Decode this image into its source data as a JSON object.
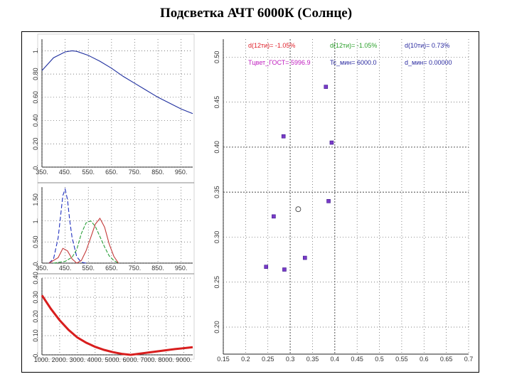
{
  "title": "Подсветка АЧТ 6000К  (Солнце)",
  "chart_data": [
    {
      "type": "line",
      "name": "spectrum",
      "x_ticks": [
        "350.",
        "450.",
        "550.",
        "650.",
        "750.",
        "850.",
        "950."
      ],
      "y_ticks": [
        "0.",
        "0.20",
        "0.40",
        "0.60",
        "0.80",
        "1."
      ],
      "xlim": [
        350,
        1000
      ],
      "ylim": [
        0,
        1.1
      ],
      "series": [
        {
          "name": "blackbody",
          "color": "#1f2f9f",
          "x": [
            350,
            400,
            450,
            480,
            500,
            550,
            600,
            650,
            700,
            750,
            800,
            850,
            900,
            950,
            1000
          ],
          "y": [
            0.83,
            0.94,
            0.99,
            1.0,
            0.995,
            0.96,
            0.91,
            0.85,
            0.78,
            0.72,
            0.66,
            0.6,
            0.55,
            0.5,
            0.46
          ]
        }
      ]
    },
    {
      "type": "line",
      "name": "color-matching",
      "x_ticks": [
        "350.",
        "450.",
        "550.",
        "650.",
        "750.",
        "850.",
        "950."
      ],
      "y_ticks": [
        "0.",
        "0.50",
        "1.",
        "1.50"
      ],
      "xlim": [
        350,
        1000
      ],
      "ylim": [
        0,
        1.8
      ],
      "series": [
        {
          "name": "z",
          "color": "#1f2fbf",
          "dash": "6,3",
          "x": [
            380,
            400,
            420,
            440,
            450,
            460,
            470,
            480,
            500,
            520,
            540
          ],
          "y": [
            0.0,
            0.1,
            0.6,
            1.6,
            1.75,
            1.5,
            1.0,
            0.6,
            0.15,
            0.02,
            0.0
          ]
        },
        {
          "name": "y",
          "color": "#2a9f3a",
          "dash": "5,2",
          "x": [
            400,
            450,
            480,
            500,
            520,
            540,
            560,
            580,
            600,
            620,
            640,
            660,
            680
          ],
          "y": [
            0.0,
            0.04,
            0.14,
            0.32,
            0.7,
            0.95,
            1.0,
            0.87,
            0.63,
            0.38,
            0.17,
            0.06,
            0.0
          ]
        },
        {
          "name": "x",
          "color": "#c43a3a",
          "dash": "",
          "x": [
            380,
            420,
            440,
            460,
            480,
            500,
            520,
            540,
            560,
            580,
            600,
            620,
            640,
            660,
            680
          ],
          "y": [
            0.0,
            0.13,
            0.35,
            0.29,
            0.1,
            0.0,
            0.06,
            0.29,
            0.6,
            0.92,
            1.06,
            0.85,
            0.45,
            0.16,
            0.0
          ]
        }
      ]
    },
    {
      "type": "line",
      "name": "temperature-curve",
      "x_ticks": [
        "1000.",
        "2000.",
        "3000.",
        "4000.",
        "5000.",
        "6000.",
        "7000.",
        "8000.",
        "9000."
      ],
      "y_ticks": [
        "0.",
        "0.10",
        "0.20",
        "0.30",
        "0.40"
      ],
      "xlim": [
        1000,
        9500
      ],
      "ylim": [
        0,
        0.4
      ],
      "series": [
        {
          "name": "d",
          "color": "#d81e1e",
          "x": [
            1000,
            1500,
            2000,
            2500,
            3000,
            3500,
            4000,
            4500,
            5000,
            5500,
            6000,
            6500,
            7000,
            7500,
            8000,
            8500,
            9000,
            9500
          ],
          "y": [
            0.31,
            0.24,
            0.18,
            0.13,
            0.09,
            0.063,
            0.042,
            0.026,
            0.014,
            0.005,
            0.0,
            0.006,
            0.012,
            0.018,
            0.024,
            0.03,
            0.035,
            0.04
          ]
        }
      ]
    },
    {
      "type": "scatter",
      "name": "chromaticity",
      "x_ticks": [
        "0.15",
        "0.2",
        "0.25",
        "0.3",
        "0.35",
        "0.4",
        "0.45",
        "0.5",
        "0.55",
        "0.6",
        "0.65",
        "0.7"
      ],
      "y_ticks": [
        "0.20",
        "0.25",
        "0.30",
        "0.35",
        "0.40",
        "0.45",
        "0.50"
      ],
      "xlim": [
        0.15,
        0.7
      ],
      "ylim": [
        0.17,
        0.52
      ],
      "legend": [
        {
          "label": "d(12ти)= -1.05%",
          "color": "#e0202a"
        },
        {
          "label": "d(12ти)= -1.05%",
          "color": "#2aa02a"
        },
        {
          "label": "d(10ти)= 0.73%",
          "color": "#2a2aa0"
        },
        {
          "label": "Tцвет_ГОСТ= 5996.9",
          "color": "#c020c0"
        },
        {
          "label": "Tc_мин= 6000.0",
          "color": "#2a2aa0"
        },
        {
          "label": "d_мин= 0.00000",
          "color": "#2a2aa0"
        }
      ],
      "points": [
        {
          "x": 0.285,
          "y": 0.412,
          "color": "#7a3ac8"
        },
        {
          "x": 0.38,
          "y": 0.467,
          "color": "#7a3ac8"
        },
        {
          "x": 0.393,
          "y": 0.405,
          "color": "#7a3ac8"
        },
        {
          "x": 0.263,
          "y": 0.323,
          "color": "#7a3ac8"
        },
        {
          "x": 0.386,
          "y": 0.34,
          "color": "#7a3ac8"
        },
        {
          "x": 0.333,
          "y": 0.277,
          "color": "#7a3ac8"
        },
        {
          "x": 0.246,
          "y": 0.267,
          "color": "#7a3ac8"
        },
        {
          "x": 0.287,
          "y": 0.264,
          "color": "#7a3ac8"
        }
      ],
      "white_point": {
        "x": 0.318,
        "y": 0.331
      },
      "guides_x": [
        0.3,
        0.4
      ],
      "guides_y": [
        0.4,
        0.35
      ]
    }
  ]
}
